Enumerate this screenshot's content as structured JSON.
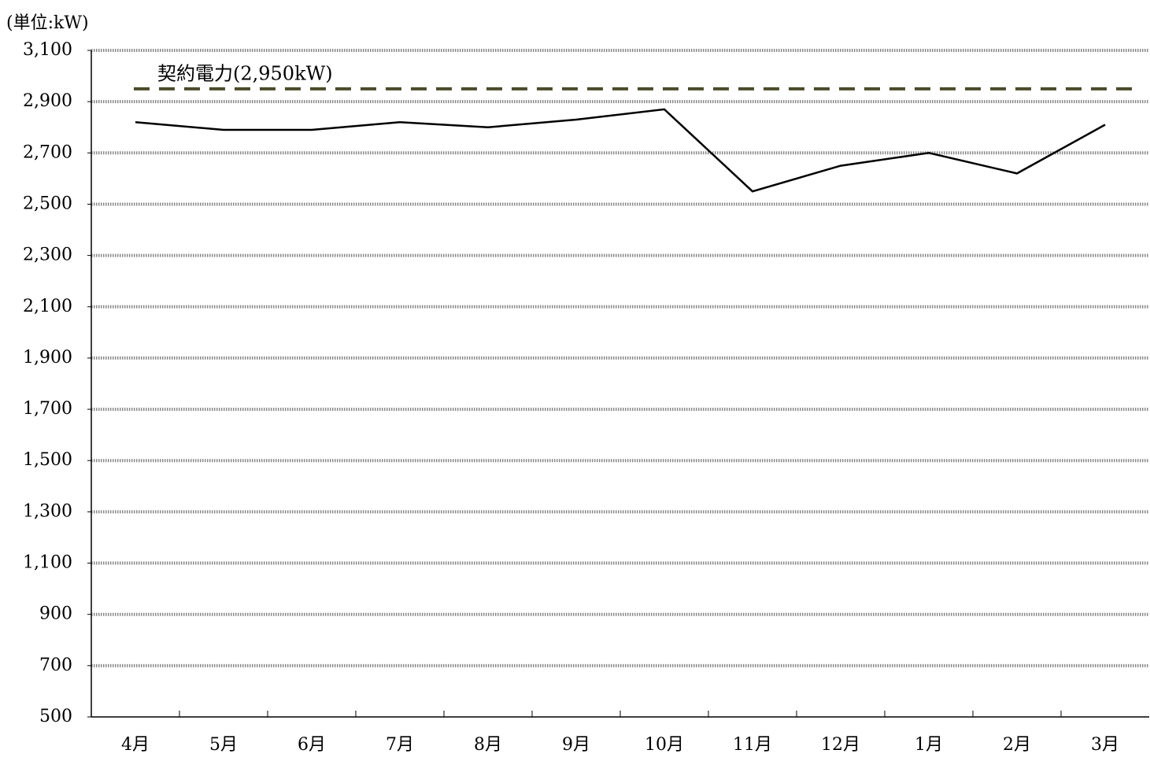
{
  "chart_data": {
    "type": "line",
    "y_label": "(単位:kW)",
    "categories": [
      "4月",
      "5月",
      "6月",
      "7月",
      "8月",
      "9月",
      "10月",
      "11月",
      "12月",
      "1月",
      "2月",
      "3月"
    ],
    "series": [
      {
        "color": "#000000",
        "values": [
          2820,
          2790,
          2790,
          2820,
          2800,
          2830,
          2870,
          2550,
          2650,
          2700,
          2620,
          2810
        ]
      }
    ],
    "reference_line": {
      "value": 2950,
      "label": "契約電力(2,950kW)",
      "color": "#4b4b2b"
    },
    "ylim": [
      500,
      3100
    ],
    "yticks": [
      500,
      700,
      900,
      {
        "value": 1100,
        "label": "1,100"
      },
      {
        "value": 1300,
        "label": "1,300"
      },
      {
        "value": 1500,
        "label": "1,500"
      },
      {
        "value": 1700,
        "label": "1,700"
      },
      {
        "value": 1900,
        "label": "1,900"
      },
      {
        "value": 2100,
        "label": "2,100"
      },
      {
        "value": 2300,
        "label": "2,300"
      },
      {
        "value": 2500,
        "label": "2,500"
      },
      {
        "value": 2700,
        "label": "2,700"
      },
      {
        "value": 2900,
        "label": "2,900"
      },
      {
        "value": 3100,
        "label": "3,100"
      }
    ],
    "grid": true
  }
}
